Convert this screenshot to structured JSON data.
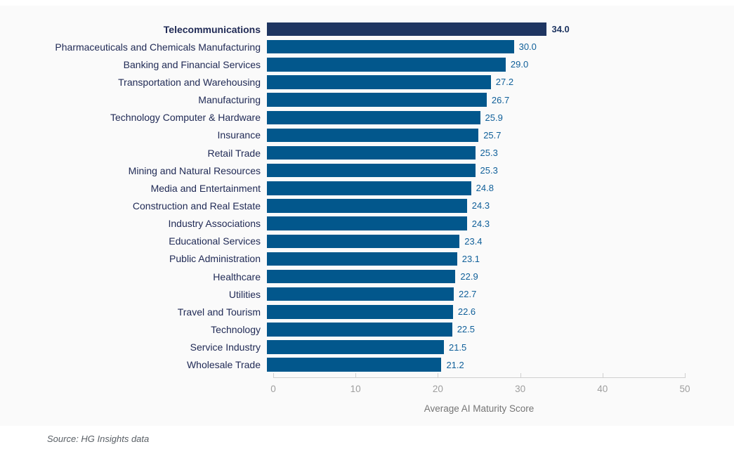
{
  "colors": {
    "bar": "#02578C",
    "bar_highlight": "#1E3561",
    "value_text": "#0F5F99",
    "category_text": "#212B56",
    "axis_line": "#cfcfcf",
    "tick_text": "#9e9e9e",
    "axis_title_text": "#757575",
    "chart_background": "#fafafa"
  },
  "chart_data": {
    "type": "bar",
    "orientation": "horizontal",
    "title": "",
    "xlabel": "Average AI Maturity Score",
    "ylabel": "",
    "xlim": [
      0,
      50
    ],
    "x_ticks": [
      "0",
      "10",
      "20",
      "30",
      "40",
      "50"
    ],
    "grid": false,
    "legend": false,
    "highlight_index": 0,
    "categories": [
      "Telecommunications",
      "Pharmaceuticals and Chemicals Manufacturing",
      "Banking and Financial Services",
      "Transportation and Warehousing",
      "Manufacturing",
      "Technology Computer & Hardware",
      "Insurance",
      "Retail Trade",
      "Mining and Natural Resources",
      "Media and Entertainment",
      "Construction and Real Estate",
      "Industry Associations",
      "Educational Services",
      "Public Administration",
      "Healthcare",
      "Utilities",
      "Travel and Tourism",
      "Technology",
      "Service Industry",
      "Wholesale Trade"
    ],
    "values": [
      34.0,
      30.0,
      29.0,
      27.2,
      26.7,
      25.9,
      25.7,
      25.3,
      25.3,
      24.8,
      24.3,
      24.3,
      23.4,
      23.1,
      22.9,
      22.7,
      22.6,
      22.5,
      21.5,
      21.2
    ],
    "value_labels": [
      "34.0",
      "30.0",
      "29.0",
      "27.2",
      "26.7",
      "25.9",
      "25.7",
      "25.3",
      "25.3",
      "24.8",
      "24.3",
      "24.3",
      "23.4",
      "23.1",
      "22.9",
      "22.7",
      "22.6",
      "22.5",
      "21.5",
      "21.2"
    ]
  },
  "footer": {
    "source_note": "Source: HG Insights data"
  }
}
